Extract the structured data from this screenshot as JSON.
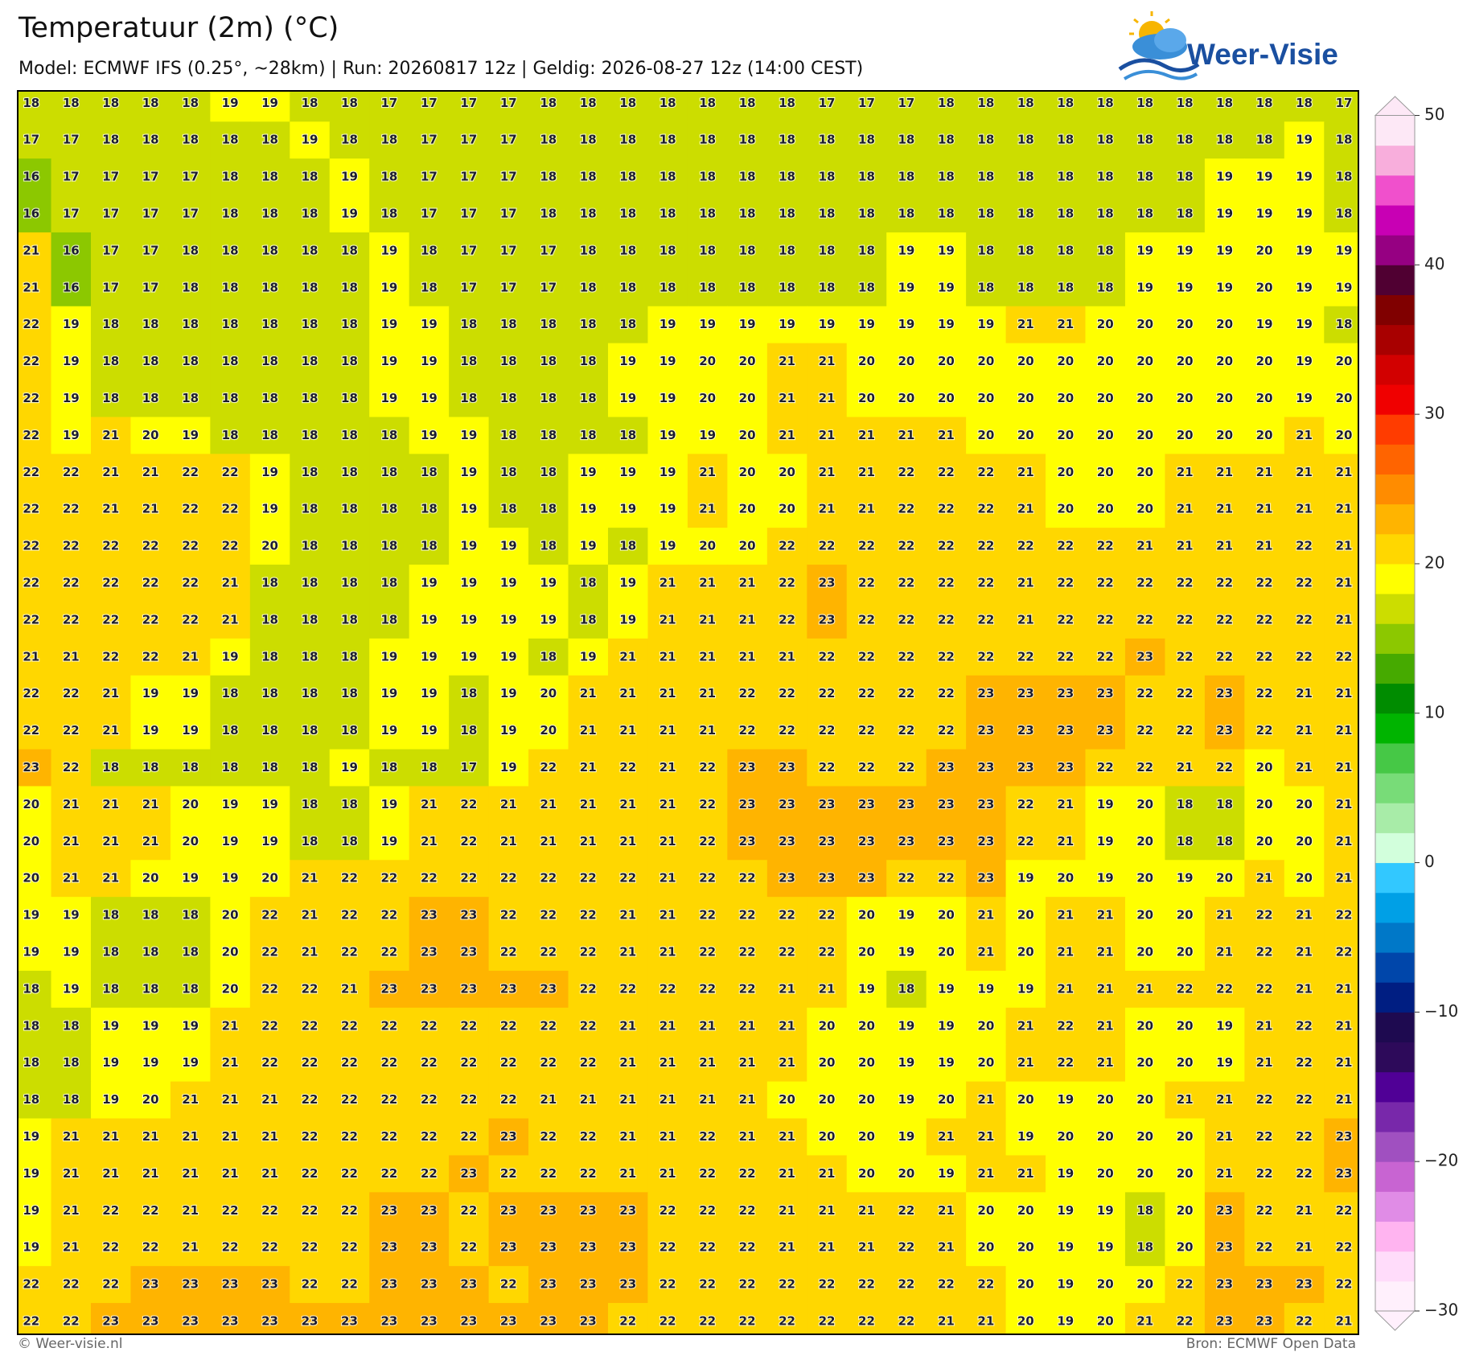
{
  "chart_data": {
    "type": "heatmap",
    "title": "Temperatuur (2m) (°C)",
    "subtitle": "Model: ECMWF IFS (0.25°, ~28km)  |  Run: 20260817 12z  |  Geldig: 2026-08-27 12z (14:00 CEST)",
    "values": [
      [
        18,
        18,
        18,
        18,
        18,
        19,
        19,
        18,
        18,
        17,
        17,
        17,
        17,
        18,
        18,
        18,
        18,
        18,
        18,
        18,
        17,
        17,
        17,
        18,
        18,
        18,
        18,
        18,
        18,
        18,
        18,
        18,
        18,
        17
      ],
      [
        17,
        17,
        18,
        18,
        18,
        18,
        18,
        19,
        18,
        18,
        17,
        17,
        17,
        18,
        18,
        18,
        18,
        18,
        18,
        18,
        18,
        18,
        18,
        18,
        18,
        18,
        18,
        18,
        18,
        18,
        18,
        18,
        19,
        18
      ],
      [
        16,
        17,
        17,
        17,
        17,
        18,
        18,
        18,
        19,
        18,
        17,
        17,
        17,
        18,
        18,
        18,
        18,
        18,
        18,
        18,
        18,
        18,
        18,
        18,
        18,
        18,
        18,
        18,
        18,
        18,
        19,
        19,
        19,
        18
      ],
      [
        16,
        17,
        17,
        17,
        17,
        18,
        18,
        18,
        19,
        18,
        17,
        17,
        17,
        18,
        18,
        18,
        18,
        18,
        18,
        18,
        18,
        18,
        18,
        18,
        18,
        18,
        18,
        18,
        18,
        18,
        19,
        19,
        19,
        18
      ],
      [
        21,
        16,
        17,
        17,
        18,
        18,
        18,
        18,
        18,
        19,
        18,
        17,
        17,
        17,
        18,
        18,
        18,
        18,
        18,
        18,
        18,
        18,
        19,
        19,
        18,
        18,
        18,
        18,
        19,
        19,
        19,
        20,
        19,
        19
      ],
      [
        21,
        16,
        17,
        17,
        18,
        18,
        18,
        18,
        18,
        19,
        18,
        17,
        17,
        17,
        18,
        18,
        18,
        18,
        18,
        18,
        18,
        18,
        19,
        19,
        18,
        18,
        18,
        18,
        19,
        19,
        19,
        20,
        19,
        19
      ],
      [
        22,
        19,
        18,
        18,
        18,
        18,
        18,
        18,
        18,
        19,
        19,
        18,
        18,
        18,
        18,
        18,
        19,
        19,
        19,
        19,
        19,
        19,
        19,
        19,
        19,
        21,
        21,
        20,
        20,
        20,
        20,
        19,
        19,
        18
      ],
      [
        22,
        19,
        18,
        18,
        18,
        18,
        18,
        18,
        18,
        19,
        19,
        18,
        18,
        18,
        18,
        19,
        19,
        20,
        20,
        21,
        21,
        20,
        20,
        20,
        20,
        20,
        20,
        20,
        20,
        20,
        20,
        20,
        19,
        20
      ],
      [
        22,
        19,
        18,
        18,
        18,
        18,
        18,
        18,
        18,
        19,
        19,
        18,
        18,
        18,
        18,
        19,
        19,
        20,
        20,
        21,
        21,
        20,
        20,
        20,
        20,
        20,
        20,
        20,
        20,
        20,
        20,
        20,
        19,
        20
      ],
      [
        22,
        19,
        21,
        20,
        19,
        18,
        18,
        18,
        18,
        18,
        19,
        19,
        18,
        18,
        18,
        18,
        19,
        19,
        20,
        21,
        21,
        21,
        21,
        21,
        20,
        20,
        20,
        20,
        20,
        20,
        20,
        20,
        21,
        20
      ],
      [
        22,
        22,
        21,
        21,
        22,
        22,
        19,
        18,
        18,
        18,
        18,
        19,
        18,
        18,
        19,
        19,
        19,
        21,
        20,
        20,
        21,
        21,
        22,
        22,
        22,
        21,
        20,
        20,
        20,
        21,
        21,
        21,
        21,
        21
      ],
      [
        22,
        22,
        21,
        21,
        22,
        22,
        19,
        18,
        18,
        18,
        18,
        19,
        18,
        18,
        19,
        19,
        19,
        21,
        20,
        20,
        21,
        21,
        22,
        22,
        22,
        21,
        20,
        20,
        20,
        21,
        21,
        21,
        21,
        21
      ],
      [
        22,
        22,
        22,
        22,
        22,
        22,
        20,
        18,
        18,
        18,
        18,
        19,
        19,
        18,
        19,
        18,
        19,
        20,
        20,
        22,
        22,
        22,
        22,
        22,
        22,
        22,
        22,
        22,
        21,
        21,
        21,
        21,
        22,
        21
      ],
      [
        22,
        22,
        22,
        22,
        22,
        21,
        18,
        18,
        18,
        18,
        19,
        19,
        19,
        19,
        18,
        19,
        21,
        21,
        21,
        22,
        23,
        22,
        22,
        22,
        22,
        21,
        22,
        22,
        22,
        22,
        22,
        22,
        22,
        21
      ],
      [
        22,
        22,
        22,
        22,
        22,
        21,
        18,
        18,
        18,
        18,
        19,
        19,
        19,
        19,
        18,
        19,
        21,
        21,
        21,
        22,
        23,
        22,
        22,
        22,
        22,
        21,
        22,
        22,
        22,
        22,
        22,
        22,
        22,
        21
      ],
      [
        21,
        21,
        22,
        22,
        21,
        19,
        18,
        18,
        18,
        19,
        19,
        19,
        19,
        18,
        19,
        21,
        21,
        21,
        21,
        21,
        22,
        22,
        22,
        22,
        22,
        22,
        22,
        22,
        23,
        22,
        22,
        22,
        22,
        22
      ],
      [
        22,
        22,
        21,
        19,
        19,
        18,
        18,
        18,
        18,
        19,
        19,
        18,
        19,
        20,
        21,
        21,
        21,
        21,
        22,
        22,
        22,
        22,
        22,
        22,
        23,
        23,
        23,
        23,
        22,
        22,
        23,
        22,
        21,
        21
      ],
      [
        22,
        22,
        21,
        19,
        19,
        18,
        18,
        18,
        18,
        19,
        19,
        18,
        19,
        20,
        21,
        21,
        21,
        21,
        22,
        22,
        22,
        22,
        22,
        22,
        23,
        23,
        23,
        23,
        22,
        22,
        23,
        22,
        21,
        21
      ],
      [
        23,
        22,
        18,
        18,
        18,
        18,
        18,
        18,
        19,
        18,
        18,
        17,
        19,
        22,
        21,
        22,
        21,
        22,
        23,
        23,
        22,
        22,
        22,
        23,
        23,
        23,
        23,
        22,
        22,
        21,
        22,
        20,
        21,
        21
      ],
      [
        20,
        21,
        21,
        21,
        20,
        19,
        19,
        18,
        18,
        19,
        21,
        22,
        21,
        21,
        21,
        21,
        21,
        22,
        23,
        23,
        23,
        23,
        23,
        23,
        23,
        22,
        21,
        19,
        20,
        18,
        18,
        20,
        20,
        21
      ],
      [
        20,
        21,
        21,
        21,
        20,
        19,
        19,
        18,
        18,
        19,
        21,
        22,
        21,
        21,
        21,
        21,
        21,
        22,
        23,
        23,
        23,
        23,
        23,
        23,
        23,
        22,
        21,
        19,
        20,
        18,
        18,
        20,
        20,
        21
      ],
      [
        20,
        21,
        21,
        20,
        19,
        19,
        20,
        21,
        22,
        22,
        22,
        22,
        22,
        22,
        22,
        22,
        21,
        22,
        22,
        23,
        23,
        23,
        22,
        22,
        23,
        19,
        20,
        19,
        20,
        19,
        20,
        21,
        20,
        21
      ],
      [
        19,
        19,
        18,
        18,
        18,
        20,
        22,
        21,
        22,
        22,
        23,
        23,
        22,
        22,
        22,
        21,
        21,
        22,
        22,
        22,
        22,
        20,
        19,
        20,
        21,
        20,
        21,
        21,
        20,
        20,
        21,
        22,
        21,
        22
      ],
      [
        19,
        19,
        18,
        18,
        18,
        20,
        22,
        21,
        22,
        22,
        23,
        23,
        22,
        22,
        22,
        21,
        21,
        22,
        22,
        22,
        22,
        20,
        19,
        20,
        21,
        20,
        21,
        21,
        20,
        20,
        21,
        22,
        21,
        22
      ],
      [
        18,
        19,
        18,
        18,
        18,
        20,
        22,
        22,
        21,
        23,
        23,
        23,
        23,
        23,
        22,
        22,
        22,
        22,
        22,
        21,
        21,
        19,
        18,
        19,
        19,
        19,
        21,
        21,
        21,
        22,
        22,
        22,
        21,
        21
      ],
      [
        18,
        18,
        19,
        19,
        19,
        21,
        22,
        22,
        22,
        22,
        22,
        22,
        22,
        22,
        22,
        21,
        21,
        21,
        21,
        21,
        20,
        20,
        19,
        19,
        20,
        21,
        22,
        21,
        20,
        20,
        19,
        21,
        22,
        21
      ],
      [
        18,
        18,
        19,
        19,
        19,
        21,
        22,
        22,
        22,
        22,
        22,
        22,
        22,
        22,
        22,
        21,
        21,
        21,
        21,
        21,
        20,
        20,
        19,
        19,
        20,
        21,
        22,
        21,
        20,
        20,
        19,
        21,
        22,
        21
      ],
      [
        18,
        18,
        19,
        20,
        21,
        21,
        21,
        22,
        22,
        22,
        22,
        22,
        22,
        21,
        21,
        21,
        21,
        21,
        21,
        20,
        20,
        20,
        19,
        20,
        21,
        20,
        19,
        20,
        20,
        21,
        21,
        22,
        22,
        21
      ],
      [
        19,
        21,
        21,
        21,
        21,
        21,
        21,
        22,
        22,
        22,
        22,
        22,
        23,
        22,
        22,
        21,
        21,
        22,
        21,
        21,
        20,
        20,
        19,
        21,
        21,
        19,
        20,
        20,
        20,
        20,
        21,
        22,
        22,
        23
      ],
      [
        19,
        21,
        21,
        21,
        21,
        21,
        21,
        22,
        22,
        22,
        22,
        23,
        22,
        22,
        22,
        21,
        21,
        22,
        22,
        21,
        21,
        20,
        20,
        19,
        21,
        21,
        19,
        20,
        20,
        20,
        21,
        22,
        22,
        23
      ],
      [
        19,
        21,
        22,
        22,
        21,
        22,
        22,
        22,
        22,
        23,
        23,
        22,
        23,
        23,
        23,
        23,
        22,
        22,
        22,
        21,
        21,
        21,
        22,
        21,
        20,
        20,
        19,
        19,
        18,
        20,
        23,
        22,
        21,
        22
      ],
      [
        19,
        21,
        22,
        22,
        21,
        22,
        22,
        22,
        22,
        23,
        23,
        22,
        23,
        23,
        23,
        23,
        22,
        22,
        22,
        21,
        21,
        21,
        22,
        21,
        20,
        20,
        19,
        19,
        18,
        20,
        23,
        22,
        21,
        22
      ],
      [
        22,
        22,
        22,
        23,
        23,
        23,
        23,
        22,
        22,
        23,
        23,
        23,
        22,
        23,
        23,
        23,
        22,
        22,
        22,
        22,
        22,
        22,
        22,
        22,
        22,
        20,
        19,
        20,
        20,
        22,
        23,
        23,
        23,
        22
      ],
      [
        22,
        22,
        23,
        23,
        23,
        23,
        23,
        23,
        23,
        23,
        23,
        23,
        23,
        23,
        23,
        22,
        22,
        22,
        22,
        22,
        22,
        22,
        22,
        21,
        21,
        20,
        19,
        20,
        21,
        22,
        23,
        23,
        22,
        21
      ]
    ],
    "colorbar": {
      "ylim": [
        -30,
        50
      ],
      "yticks": [
        50,
        40,
        30,
        20,
        10,
        0,
        {
          "value": -10,
          "label": "−10"
        },
        {
          "value": -20,
          "label": "−20"
        },
        {
          "value": -30,
          "label": "−30"
        }
      ],
      "levels": [
        -30,
        -28,
        -26,
        -24,
        -22,
        -20,
        -18,
        -16,
        -14,
        -12,
        -10,
        -8,
        -6,
        -4,
        -2,
        0,
        2,
        4,
        6,
        8,
        10,
        12,
        14,
        16,
        18,
        20,
        22,
        24,
        26,
        28,
        30,
        32,
        34,
        36,
        38,
        40,
        42,
        44,
        46,
        48,
        50
      ],
      "colors": [
        "#fff0fc",
        "#ffdcfa",
        "#ffb4f0",
        "#e08ce6",
        "#c864d2",
        "#a050c0",
        "#7828aa",
        "#500096",
        "#2d0a5a",
        "#1e0a50",
        "#001e82",
        "#0046aa",
        "#0078c8",
        "#00a0e6",
        "#32c8ff",
        "#d2ffdc",
        "#a8eca8",
        "#78dc78",
        "#46c846",
        "#00b400",
        "#008c00",
        "#46aa00",
        "#8cc800",
        "#ccdd00",
        "#ffff00",
        "#ffd700",
        "#ffb400",
        "#ff8c00",
        "#ff6400",
        "#ff3c00",
        "#f00000",
        "#d20000",
        "#a80000",
        "#800000",
        "#500032",
        "#960082",
        "#c800b4",
        "#f050cc",
        "#f8aedc",
        "#fde8f6"
      ]
    }
  },
  "logo": {
    "text": "Weer-Visie"
  },
  "footer": {
    "left": "© Weer-visie.nl",
    "right": "Bron: ECMWF Open Data"
  }
}
